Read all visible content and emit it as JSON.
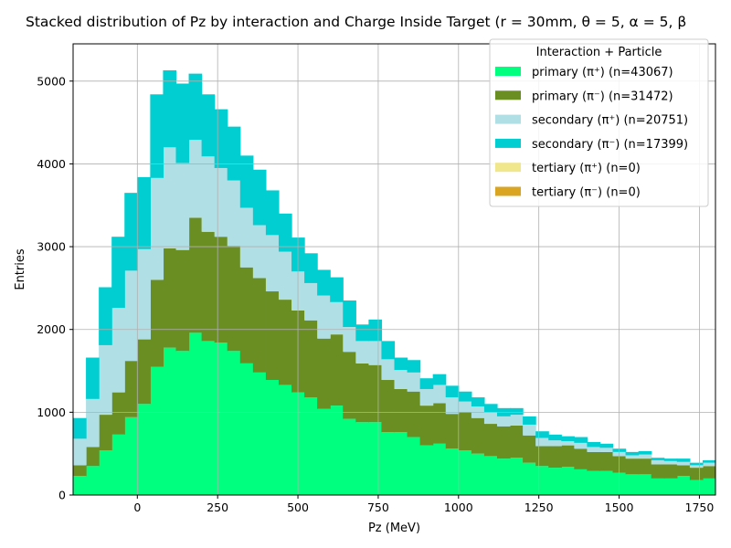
{
  "chart_data": {
    "type": "bar",
    "stacked": true,
    "title": "Stacked distribution of Pz by interaction and Charge Inside Target (r = 30mm, θ = 5, α = 5, β",
    "xlabel": "Pz (MeV)",
    "ylabel": "Entries",
    "xlim": [
      -200,
      1800
    ],
    "ylim": [
      0,
      5450
    ],
    "grid": true,
    "legend": {
      "title": "Interaction + Particle",
      "placement": "top-right"
    },
    "x_ticks": [
      {
        "value": 0,
        "label": "0"
      },
      {
        "value": 250,
        "label": "250"
      },
      {
        "value": 500,
        "label": "500"
      },
      {
        "value": 750,
        "label": "750"
      },
      {
        "value": 1000,
        "label": "1000"
      },
      {
        "value": 1250,
        "label": "1250"
      },
      {
        "value": 1500,
        "label": "1500"
      },
      {
        "value": 1750,
        "label": "1750"
      }
    ],
    "y_ticks": [
      {
        "value": 0,
        "label": "0"
      },
      {
        "value": 1000,
        "label": "1000"
      },
      {
        "value": 2000,
        "label": "2000"
      },
      {
        "value": 3000,
        "label": "3000"
      },
      {
        "value": 4000,
        "label": "4000"
      },
      {
        "value": 5000,
        "label": "5000"
      }
    ],
    "bin_edges": [
      -200,
      -160,
      -120,
      -80,
      -40,
      0,
      40,
      80,
      120,
      160,
      200,
      240,
      280,
      320,
      360,
      400,
      440,
      480,
      520,
      560,
      600,
      640,
      680,
      720,
      760,
      800,
      840,
      880,
      920,
      960,
      1000,
      1040,
      1080,
      1120,
      1160,
      1200,
      1240,
      1280,
      1320,
      1360,
      1400,
      1440,
      1480,
      1520,
      1560,
      1600,
      1640,
      1680,
      1720,
      1760,
      1800
    ],
    "series": [
      {
        "name": "primary (π⁺) (n=43067)",
        "color": "#00ff7f",
        "values": [
          230,
          350,
          540,
          730,
          940,
          1100,
          1550,
          1780,
          1740,
          1960,
          1860,
          1840,
          1740,
          1590,
          1480,
          1390,
          1330,
          1240,
          1180,
          1040,
          1080,
          920,
          880,
          880,
          760,
          760,
          700,
          600,
          620,
          560,
          540,
          500,
          470,
          440,
          450,
          390,
          350,
          330,
          340,
          310,
          290,
          290,
          270,
          250,
          250,
          200,
          200,
          230,
          180,
          200
        ]
      },
      {
        "name": "primary (π⁻) (n=31472)",
        "color": "#6b8e23",
        "values": [
          130,
          230,
          430,
          510,
          680,
          780,
          1050,
          1200,
          1220,
          1390,
          1320,
          1280,
          1270,
          1160,
          1140,
          1070,
          1030,
          990,
          930,
          850,
          860,
          810,
          710,
          690,
          630,
          520,
          550,
          480,
          490,
          420,
          460,
          430,
          390,
          390,
          390,
          330,
          240,
          260,
          260,
          250,
          230,
          230,
          200,
          190,
          190,
          170,
          170,
          130,
          150,
          150
        ]
      },
      {
        "name": "secondary (π⁺) (n=20751)",
        "color": "#b0e0e6",
        "values": [
          320,
          580,
          840,
          1020,
          1090,
          1090,
          1230,
          1220,
          1050,
          940,
          910,
          830,
          790,
          720,
          640,
          680,
          580,
          470,
          450,
          520,
          390,
          300,
          270,
          290,
          250,
          230,
          230,
          200,
          220,
          200,
          130,
          140,
          140,
          120,
          130,
          130,
          100,
          70,
          50,
          70,
          60,
          50,
          50,
          40,
          50,
          50,
          40,
          40,
          30,
          40
        ]
      },
      {
        "name": "secondary (π⁻) (n=17399)",
        "color": "#00ced1",
        "values": [
          250,
          500,
          700,
          860,
          940,
          870,
          1010,
          930,
          960,
          800,
          750,
          710,
          650,
          630,
          670,
          540,
          460,
          410,
          360,
          310,
          300,
          320,
          200,
          260,
          220,
          150,
          150,
          130,
          130,
          140,
          120,
          110,
          100,
          100,
          80,
          100,
          80,
          70,
          60,
          70,
          60,
          50,
          40,
          40,
          40,
          30,
          30,
          40,
          30,
          30
        ]
      },
      {
        "name": "tertiary (π⁺) (n=0)",
        "color": "#f0e68c",
        "values": [
          0,
          0,
          0,
          0,
          0,
          0,
          0,
          0,
          0,
          0,
          0,
          0,
          0,
          0,
          0,
          0,
          0,
          0,
          0,
          0,
          0,
          0,
          0,
          0,
          0,
          0,
          0,
          0,
          0,
          0,
          0,
          0,
          0,
          0,
          0,
          0,
          0,
          0,
          0,
          0,
          0,
          0,
          0,
          0,
          0,
          0,
          0,
          0,
          0,
          0
        ]
      },
      {
        "name": "tertiary (π⁻) (n=0)",
        "color": "#daa520",
        "values": [
          0,
          0,
          0,
          0,
          0,
          0,
          0,
          0,
          0,
          0,
          0,
          0,
          0,
          0,
          0,
          0,
          0,
          0,
          0,
          0,
          0,
          0,
          0,
          0,
          0,
          0,
          0,
          0,
          0,
          0,
          0,
          0,
          0,
          0,
          0,
          0,
          0,
          0,
          0,
          0,
          0,
          0,
          0,
          0,
          0,
          0,
          0,
          0,
          0,
          0
        ]
      }
    ]
  }
}
